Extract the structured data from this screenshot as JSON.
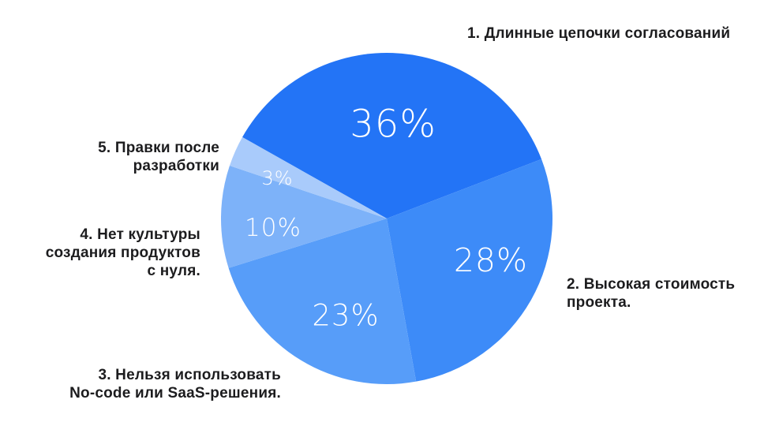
{
  "page": {
    "background": "#ffffff",
    "outer_label_color": "#1c1c1e",
    "percent_label_color": "#ffffff"
  },
  "chart_data": {
    "type": "pie",
    "title": "",
    "direction": "clockwise",
    "start_angle_deg": -60.6,
    "legend_position": "around-slices",
    "grid": false,
    "segments": [
      {
        "id": 1,
        "label": "1. Длинные цепочки согласований",
        "value": 36,
        "pct_label": "36%",
        "color": "#2374f6",
        "label_r": 0.57,
        "label_angle": 3.9,
        "label_size": 48
      },
      {
        "id": 2,
        "label": "2. Высокая стоимость\nпроекта.",
        "value": 28,
        "pct_label": "28%",
        "color": "#3d8bf8",
        "label_r": 0.677,
        "label_angle": 111.9,
        "label_size": 41
      },
      {
        "id": 3,
        "label": "3. Нельзя использовать\nNo-code или SaaS-решения.",
        "value": 23,
        "pct_label": "23%",
        "color": "#579df9",
        "label_r": 0.636,
        "label_angle": 202.9,
        "label_size": 37
      },
      {
        "id": 4,
        "label": "4. Нет культуры\nсоздания продуктов\nс нуля.",
        "value": 10,
        "pct_label": "10%",
        "color": "#7db2f9",
        "label_r": 0.688,
        "label_angle": 265.2,
        "label_size": 31
      },
      {
        "id": 5,
        "label": "5. Правки после\nразработки",
        "value": 3,
        "pct_label": "3%",
        "color": "#a9cbfb",
        "label_r": 0.703,
        "label_angle": 290.3,
        "label_size": 24
      }
    ]
  }
}
